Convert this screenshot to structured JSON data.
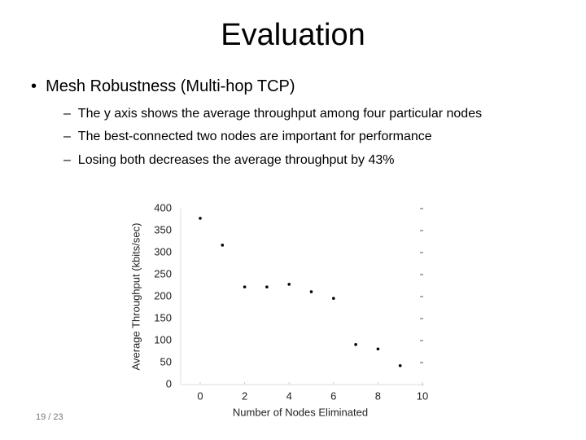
{
  "title": "Evaluation",
  "bullet": "Mesh Robustness (Multi-hop TCP)",
  "subbullets": [
    "The y axis shows the average throughput among four particular nodes",
    "The best-connected two nodes are important for performance",
    "Losing both decreases the average throughput by 43%"
  ],
  "page_number": "19 / 23",
  "chart_data": {
    "type": "scatter",
    "x_label": "Number of Nodes Eliminated",
    "y_label": "Average Throughput (kbits/sec)",
    "x": [
      0,
      1,
      2,
      3,
      4,
      5,
      6,
      7,
      8,
      9
    ],
    "values": [
      378,
      317,
      222,
      222,
      228,
      211,
      196,
      91,
      81,
      43
    ],
    "color": "#000000",
    "xlim": [
      0,
      10
    ],
    "xticks": [
      0,
      2,
      4,
      6,
      8,
      10
    ],
    "ylim": [
      0,
      400
    ],
    "yticks": [
      0,
      50,
      100,
      150,
      200,
      250,
      300,
      350,
      400
    ]
  }
}
